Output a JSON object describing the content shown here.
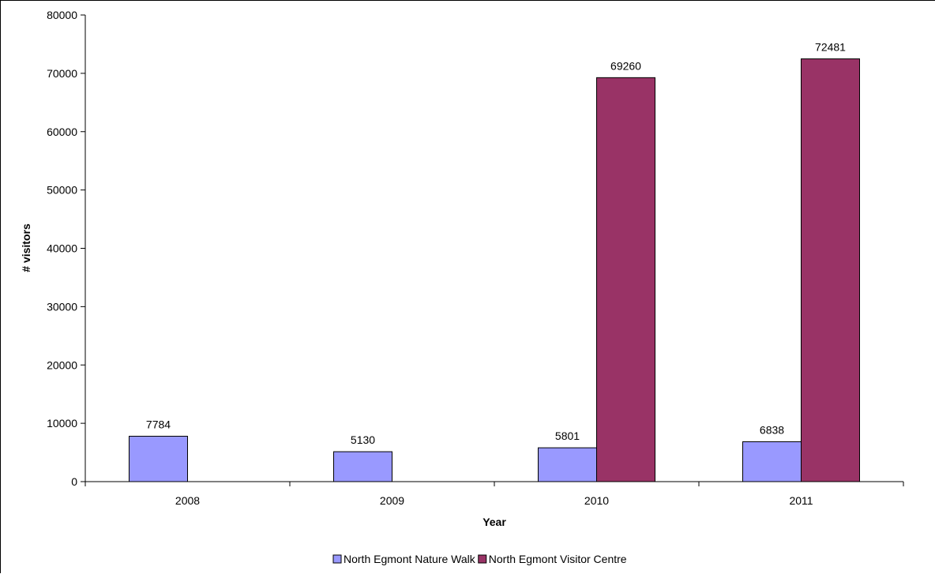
{
  "chart_data": {
    "type": "bar",
    "title": "",
    "xlabel": "Year",
    "ylabel": "# visitors",
    "categories": [
      "2008",
      "2009",
      "2010",
      "2011"
    ],
    "series": [
      {
        "name": "North Egmont Nature Walk",
        "color": "#9999FF",
        "values": [
          7784,
          5130,
          5801,
          6838
        ]
      },
      {
        "name": "North Egmont Visitor Centre",
        "color": "#993366",
        "values": [
          null,
          null,
          69260,
          72481
        ]
      }
    ],
    "ylim": [
      0,
      80000
    ],
    "yticks": [
      "0",
      "10000",
      "20000",
      "30000",
      "40000",
      "50000",
      "60000",
      "70000",
      "80000"
    ],
    "grid": false,
    "legend_position": "bottom"
  }
}
